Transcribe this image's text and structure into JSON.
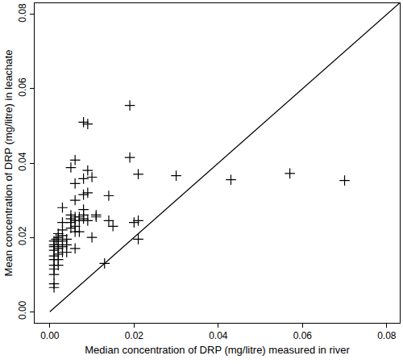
{
  "chart_data": {
    "type": "scatter",
    "x_label": "Median concentration of DRP (mg/litre) measured in river",
    "y_label": "Mean concentration of DRP (mg/litre) in leachate",
    "xlim": [
      -0.0036,
      0.0831
    ],
    "ylim": [
      -0.003,
      0.083
    ],
    "xticks": [
      {
        "value": 0,
        "label": "0.00"
      },
      0.02,
      0.04,
      0.06,
      0.08
    ],
    "yticks": [
      {
        "value": 0,
        "label": "0.00"
      },
      0.02,
      0.04,
      0.06,
      0.08
    ],
    "grid": false,
    "series": [
      {
        "type": "scatter",
        "marker": "plus",
        "color": "#000000",
        "x": [
          0.019,
          0.008,
          0.009,
          0.019,
          0.006,
          0.005,
          0.009,
          0.01,
          0.021,
          0.03,
          0.043,
          0.057,
          0.07,
          0.008,
          0.006,
          0.009,
          0.008,
          0.014,
          0.006,
          0.003,
          0.008,
          0.001,
          0.001,
          0.001,
          0.001,
          0.001,
          0.001,
          0.001,
          0.001,
          0.001,
          0.001,
          0.001,
          0.0015,
          0.002,
          0.002,
          0.002,
          0.002,
          0.002,
          0.002,
          0.002,
          0.002,
          0.003,
          0.003,
          0.003,
          0.003,
          0.003,
          0.003,
          0.004,
          0.004,
          0.004,
          0.005,
          0.005,
          0.005,
          0.005,
          0.006,
          0.006,
          0.006,
          0.006,
          0.006,
          0.007,
          0.007,
          0.007,
          0.008,
          0.008,
          0.009,
          0.01,
          0.011,
          0.011,
          0.013,
          0.014,
          0.015,
          0.02,
          0.021,
          0.021
        ],
        "values": [
          0.0555,
          0.051,
          0.0505,
          0.0415,
          0.0408,
          0.0388,
          0.038,
          0.0362,
          0.037,
          0.0366,
          0.0355,
          0.0372,
          0.0353,
          0.0358,
          0.0345,
          0.032,
          0.0315,
          0.0312,
          0.03,
          0.028,
          0.0275,
          0.0065,
          0.0075,
          0.01,
          0.0115,
          0.0125,
          0.014,
          0.015,
          0.0165,
          0.0175,
          0.018,
          0.019,
          0.0195,
          0.0125,
          0.014,
          0.0155,
          0.017,
          0.018,
          0.019,
          0.02,
          0.021,
          0.016,
          0.0175,
          0.019,
          0.0205,
          0.022,
          0.024,
          0.016,
          0.018,
          0.0195,
          0.0225,
          0.024,
          0.025,
          0.026,
          0.017,
          0.0215,
          0.023,
          0.0245,
          0.0255,
          0.0215,
          0.0245,
          0.0255,
          0.025,
          0.026,
          0.0245,
          0.02,
          0.026,
          0.0255,
          0.013,
          0.0245,
          0.023,
          0.024,
          0.0245,
          0.0195
        ]
      },
      {
        "type": "line",
        "color": "#000000",
        "line_style": "solid",
        "x": [
          0,
          0.083
        ],
        "values": [
          0,
          0.083
        ]
      }
    ]
  }
}
